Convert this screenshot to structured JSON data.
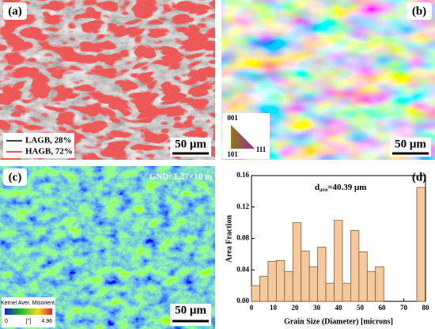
{
  "panels": {
    "a": {
      "label": "(a)",
      "legend": [
        "LAGB, 28%",
        "HAGB, 72%"
      ],
      "scale_bar": "50 μm"
    },
    "b": {
      "label": "(b)",
      "scale_bar": "50 μm",
      "ipf_key": [
        "001",
        "101",
        "111"
      ]
    },
    "c": {
      "label": "(c)",
      "annotation": "GND: 1.27×10 m",
      "colorbar_title": "Kernel Aver. Misorient.",
      "colorbar_labels": [
        "0",
        "[°]",
        "4.96"
      ],
      "scale_bar": "50 μm"
    }
  },
  "chart_data": {
    "type": "histogram",
    "panel_label": "(d)",
    "annotation_parts": [
      "d",
      "ave",
      "=40.39 μm"
    ],
    "xlabel": "Grain Size (Diameter) [microns]",
    "ylabel": "Area Fraction",
    "bins": [
      0,
      3.8,
      7.6,
      11.4,
      15.2,
      19,
      22.8,
      26.6,
      30.4,
      34.2,
      38,
      41.8,
      45.6,
      49.4,
      53.2,
      57,
      60.8,
      64.6,
      68.4,
      72.2,
      76,
      79.8
    ],
    "values": [
      0.02,
      0.032,
      0.051,
      0.052,
      0.038,
      0.1,
      0.064,
      0.044,
      0.069,
      0.023,
      0.103,
      0.023,
      0.09,
      0.063,
      0.038,
      0.044,
      0,
      0,
      0,
      0,
      0.145
    ],
    "color": "#f5c9a0",
    "xlim": [
      0,
      80
    ],
    "xticks": [
      0,
      10,
      20,
      30,
      40,
      50,
      60,
      70,
      80
    ],
    "ylim": [
      0,
      0.16
    ],
    "yticks": [
      {
        "value": 0,
        "label": "0.00"
      },
      {
        "value": 0.04,
        "label": "0.04"
      },
      {
        "value": 0.08,
        "label": "0.08"
      },
      {
        "value": 0.12,
        "label": "0.12"
      },
      {
        "value": 0.16,
        "label": "0.16"
      }
    ]
  }
}
